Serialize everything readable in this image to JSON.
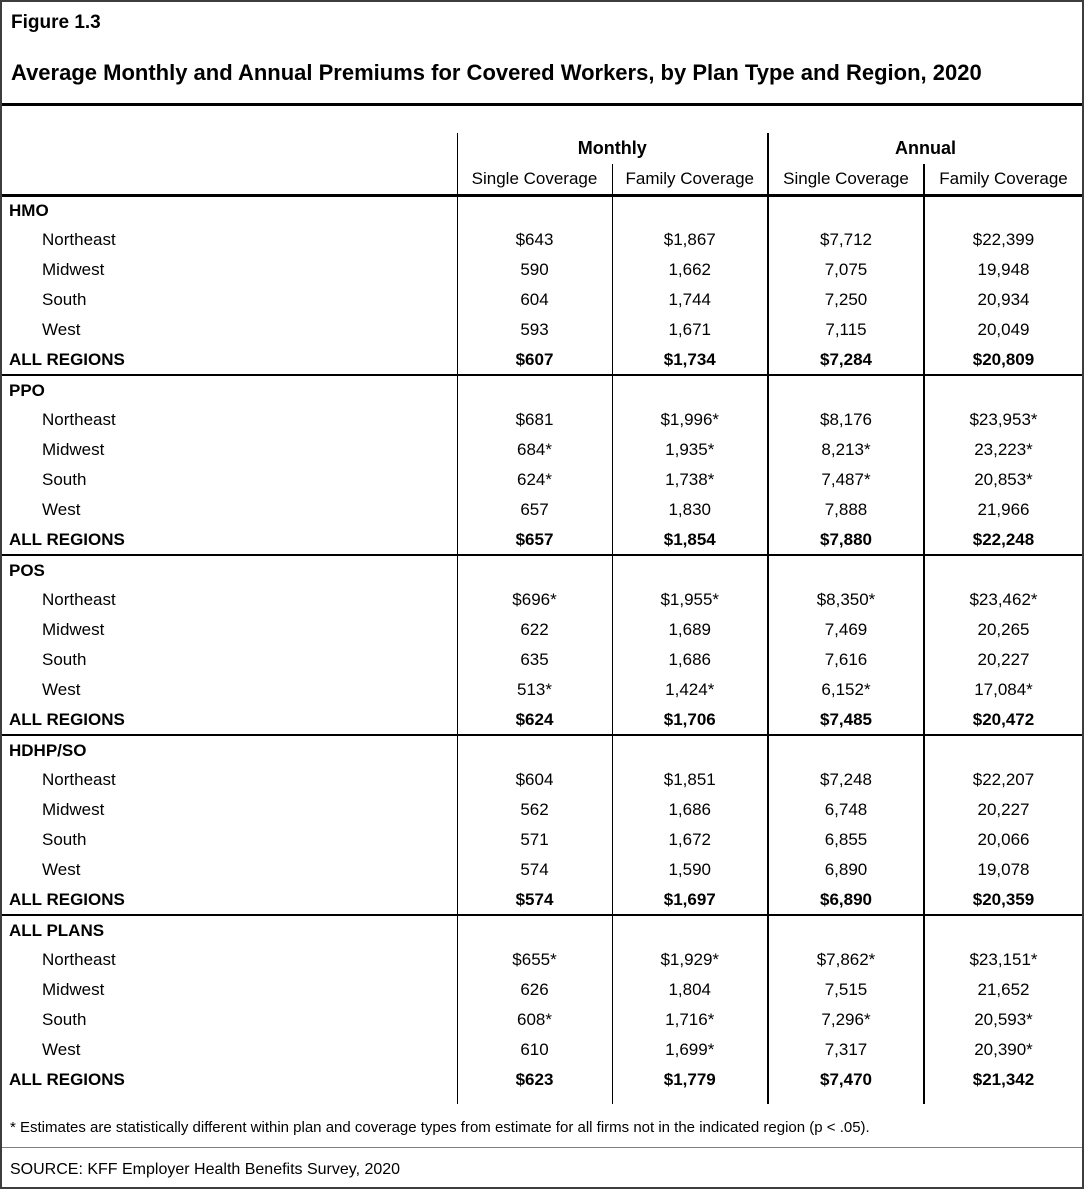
{
  "figure_label": "Figure 1.3",
  "title": "Average Monthly and Annual Premiums for Covered Workers, by Plan Type and Region, 2020",
  "chart_data": {
    "type": "table",
    "title": "Average Monthly and Annual Premiums for Covered Workers, by Plan Type and Region, 2020",
    "column_groups": [
      "Monthly",
      "Annual"
    ],
    "sub_headers": [
      "Single Coverage",
      "Family Coverage",
      "Single Coverage",
      "Family Coverage"
    ],
    "columns": [
      "Monthly Single Coverage",
      "Monthly Family Coverage",
      "Annual Single Coverage",
      "Annual Family Coverage"
    ],
    "sections": [
      {
        "name": "HMO",
        "rows": [
          {
            "label": "Northeast",
            "values": [
              "$643",
              "$1,867",
              "$7,712",
              "$22,399"
            ]
          },
          {
            "label": "Midwest",
            "values": [
              "590",
              "1,662",
              "7,075",
              "19,948"
            ]
          },
          {
            "label": "South",
            "values": [
              "604",
              "1,744",
              "7,250",
              "20,934"
            ]
          },
          {
            "label": "West",
            "values": [
              "593",
              "1,671",
              "7,115",
              "20,049"
            ]
          }
        ],
        "total": {
          "label": "ALL REGIONS",
          "values": [
            "$607",
            "$1,734",
            "$7,284",
            "$20,809"
          ]
        }
      },
      {
        "name": "PPO",
        "rows": [
          {
            "label": "Northeast",
            "values": [
              "$681",
              "$1,996*",
              "$8,176",
              "$23,953*"
            ]
          },
          {
            "label": "Midwest",
            "values": [
              "684*",
              "1,935*",
              "8,213*",
              "23,223*"
            ]
          },
          {
            "label": "South",
            "values": [
              "624*",
              "1,738*",
              "7,487*",
              "20,853*"
            ]
          },
          {
            "label": "West",
            "values": [
              "657",
              "1,830",
              "7,888",
              "21,966"
            ]
          }
        ],
        "total": {
          "label": "ALL REGIONS",
          "values": [
            "$657",
            "$1,854",
            "$7,880",
            "$22,248"
          ]
        }
      },
      {
        "name": "POS",
        "rows": [
          {
            "label": "Northeast",
            "values": [
              "$696*",
              "$1,955*",
              "$8,350*",
              "$23,462*"
            ]
          },
          {
            "label": "Midwest",
            "values": [
              "622",
              "1,689",
              "7,469",
              "20,265"
            ]
          },
          {
            "label": "South",
            "values": [
              "635",
              "1,686",
              "7,616",
              "20,227"
            ]
          },
          {
            "label": "West",
            "values": [
              "513*",
              "1,424*",
              "6,152*",
              "17,084*"
            ]
          }
        ],
        "total": {
          "label": "ALL REGIONS",
          "values": [
            "$624",
            "$1,706",
            "$7,485",
            "$20,472"
          ]
        }
      },
      {
        "name": "HDHP/SO",
        "rows": [
          {
            "label": "Northeast",
            "values": [
              "$604",
              "$1,851",
              "$7,248",
              "$22,207"
            ]
          },
          {
            "label": "Midwest",
            "values": [
              "562",
              "1,686",
              "6,748",
              "20,227"
            ]
          },
          {
            "label": "South",
            "values": [
              "571",
              "1,672",
              "6,855",
              "20,066"
            ]
          },
          {
            "label": "West",
            "values": [
              "574",
              "1,590",
              "6,890",
              "19,078"
            ]
          }
        ],
        "total": {
          "label": "ALL REGIONS",
          "values": [
            "$574",
            "$1,697",
            "$6,890",
            "$20,359"
          ]
        }
      },
      {
        "name": "ALL PLANS",
        "rows": [
          {
            "label": "Northeast",
            "values": [
              "$655*",
              "$1,929*",
              "$7,862*",
              "$23,151*"
            ]
          },
          {
            "label": "Midwest",
            "values": [
              "626",
              "1,804",
              "7,515",
              "21,652"
            ]
          },
          {
            "label": "South",
            "values": [
              "608*",
              "1,716*",
              "7,296*",
              "20,593*"
            ]
          },
          {
            "label": "West",
            "values": [
              "610",
              "1,699*",
              "7,317",
              "20,390*"
            ]
          }
        ],
        "total": {
          "label": "ALL REGIONS",
          "values": [
            "$623",
            "$1,779",
            "$7,470",
            "$21,342"
          ]
        }
      }
    ]
  },
  "footnote": "* Estimates are statistically different within plan and coverage types from estimate for all firms not in the indicated region (p < .05).",
  "source": "SOURCE: KFF Employer Health Benefits Survey, 2020",
  "colors": {
    "text": "#000000",
    "background": "#ffffff",
    "frame": "#3d3d3d",
    "rule": "#000000",
    "footer_rule": "#7f7f7f"
  }
}
